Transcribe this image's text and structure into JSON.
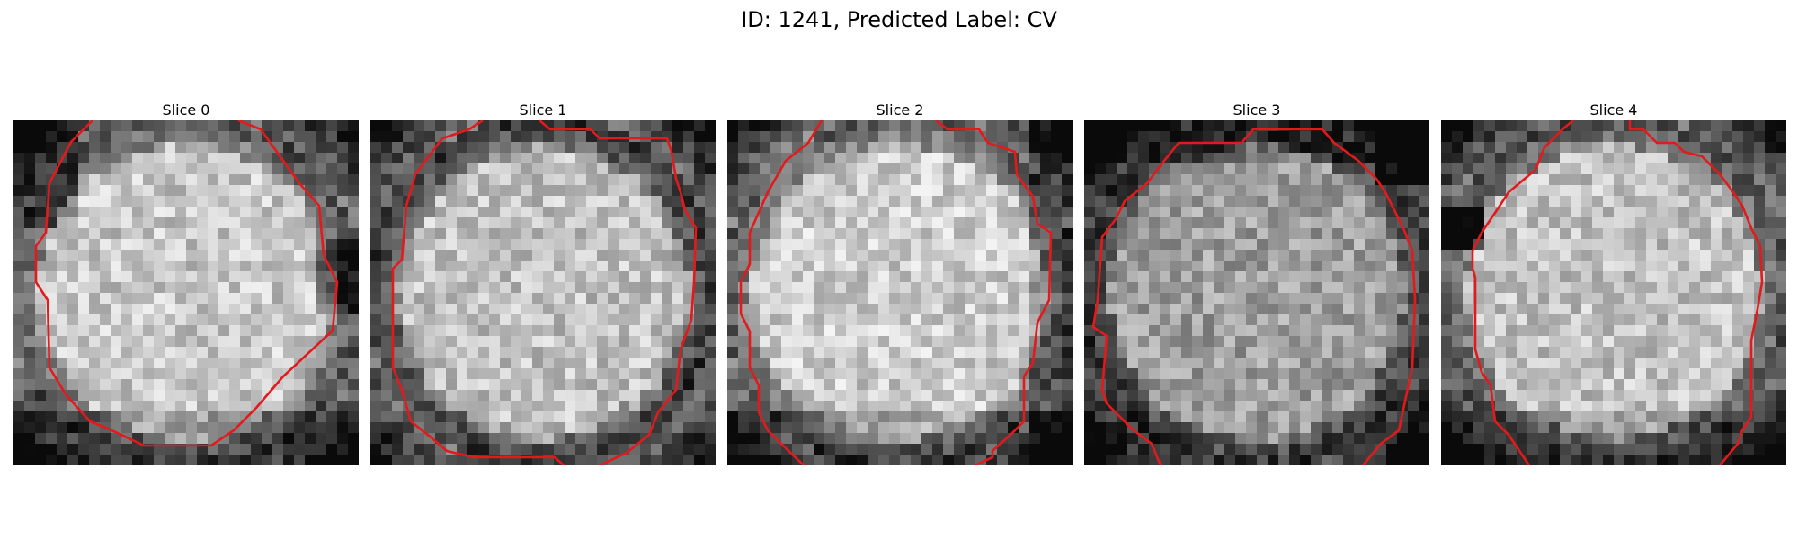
{
  "figure": {
    "title": "ID: 1241, Predicted Label: CV",
    "slices": [
      {
        "label": "Slice 0",
        "seed": 11,
        "bright": 0.78,
        "dark_edges": [
          "left-top",
          "right-mid",
          "bottom"
        ],
        "contour_color": "#e31a1c"
      },
      {
        "label": "Slice 1",
        "seed": 23,
        "bright": 0.76,
        "dark_edges": [
          "ring"
        ],
        "contour_color": "#e31a1c"
      },
      {
        "label": "Slice 2",
        "seed": 37,
        "bright": 0.8,
        "dark_edges": [
          "right",
          "bottom"
        ],
        "contour_color": "#e31a1c"
      },
      {
        "label": "Slice 3",
        "seed": 41,
        "bright": 0.62,
        "dark_edges": [
          "top",
          "right-top"
        ],
        "contour_color": "#e31a1c"
      },
      {
        "label": "Slice 4",
        "seed": 53,
        "bright": 0.76,
        "dark_edges": [
          "left-mid",
          "bottom"
        ],
        "contour_color": "#e31a1c"
      }
    ]
  }
}
